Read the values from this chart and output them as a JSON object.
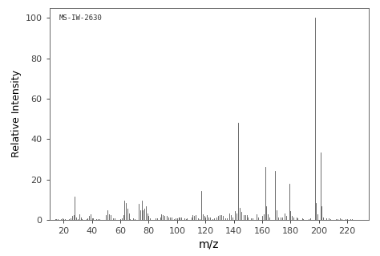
{
  "annotation": "MS-IW-2630",
  "xlabel": "m/z",
  "ylabel": "Relative Intensity",
  "xlim": [
    10,
    235
  ],
  "ylim": [
    0,
    105
  ],
  "xticks": [
    20,
    40,
    60,
    80,
    100,
    120,
    140,
    160,
    180,
    200,
    220
  ],
  "yticks": [
    0,
    20,
    40,
    60,
    80,
    100
  ],
  "background_color": "#ffffff",
  "line_color": "#555555",
  "peaks": [
    [
      14,
      0.5
    ],
    [
      15,
      0.5
    ],
    [
      16,
      0.5
    ],
    [
      18,
      0.5
    ],
    [
      19,
      1.0
    ],
    [
      20,
      0.5
    ],
    [
      21,
      0.5
    ],
    [
      24,
      0.5
    ],
    [
      25,
      1.0
    ],
    [
      26,
      2.0
    ],
    [
      27,
      2.5
    ],
    [
      28,
      11.5
    ],
    [
      29,
      1.5
    ],
    [
      30,
      0.5
    ],
    [
      31,
      3.0
    ],
    [
      32,
      1.5
    ],
    [
      33,
      0.5
    ],
    [
      36,
      0.5
    ],
    [
      37,
      1.0
    ],
    [
      38,
      2.0
    ],
    [
      39,
      3.0
    ],
    [
      40,
      1.0
    ],
    [
      41,
      1.0
    ],
    [
      43,
      0.5
    ],
    [
      44,
      0.5
    ],
    [
      45,
      0.5
    ],
    [
      50,
      2.5
    ],
    [
      51,
      5.0
    ],
    [
      52,
      3.0
    ],
    [
      53,
      2.5
    ],
    [
      55,
      1.0
    ],
    [
      56,
      1.0
    ],
    [
      60,
      0.5
    ],
    [
      61,
      1.0
    ],
    [
      62,
      2.5
    ],
    [
      63,
      9.5
    ],
    [
      64,
      8.5
    ],
    [
      65,
      5.5
    ],
    [
      66,
      3.5
    ],
    [
      67,
      0.5
    ],
    [
      69,
      1.0
    ],
    [
      70,
      0.5
    ],
    [
      73,
      8.0
    ],
    [
      74,
      5.0
    ],
    [
      75,
      9.5
    ],
    [
      76,
      5.0
    ],
    [
      77,
      5.5
    ],
    [
      78,
      7.0
    ],
    [
      79,
      3.5
    ],
    [
      80,
      2.0
    ],
    [
      81,
      1.0
    ],
    [
      85,
      1.0
    ],
    [
      86,
      1.0
    ],
    [
      88,
      1.5
    ],
    [
      89,
      3.0
    ],
    [
      90,
      2.5
    ],
    [
      91,
      2.0
    ],
    [
      93,
      2.0
    ],
    [
      94,
      1.5
    ],
    [
      95,
      1.5
    ],
    [
      96,
      1.5
    ],
    [
      98,
      0.5
    ],
    [
      99,
      1.0
    ],
    [
      100,
      1.0
    ],
    [
      101,
      1.5
    ],
    [
      102,
      1.5
    ],
    [
      103,
      1.5
    ],
    [
      105,
      1.0
    ],
    [
      106,
      0.5
    ],
    [
      107,
      1.0
    ],
    [
      110,
      1.5
    ],
    [
      111,
      2.5
    ],
    [
      112,
      2.0
    ],
    [
      113,
      2.5
    ],
    [
      115,
      1.0
    ],
    [
      116,
      0.5
    ],
    [
      117,
      14.5
    ],
    [
      118,
      3.0
    ],
    [
      119,
      2.0
    ],
    [
      120,
      1.5
    ],
    [
      121,
      2.5
    ],
    [
      122,
      1.5
    ],
    [
      123,
      1.5
    ],
    [
      125,
      0.5
    ],
    [
      126,
      1.0
    ],
    [
      128,
      1.5
    ],
    [
      129,
      2.0
    ],
    [
      130,
      2.5
    ],
    [
      131,
      2.5
    ],
    [
      132,
      2.0
    ],
    [
      134,
      1.0
    ],
    [
      135,
      1.0
    ],
    [
      137,
      3.5
    ],
    [
      138,
      2.5
    ],
    [
      139,
      1.5
    ],
    [
      141,
      4.5
    ],
    [
      142,
      3.5
    ],
    [
      143,
      48.0
    ],
    [
      144,
      6.0
    ],
    [
      145,
      4.0
    ],
    [
      147,
      2.5
    ],
    [
      148,
      2.5
    ],
    [
      149,
      2.5
    ],
    [
      150,
      1.5
    ],
    [
      152,
      1.0
    ],
    [
      153,
      1.0
    ],
    [
      156,
      3.0
    ],
    [
      157,
      1.5
    ],
    [
      160,
      2.0
    ],
    [
      161,
      3.0
    ],
    [
      162,
      26.5
    ],
    [
      163,
      7.0
    ],
    [
      164,
      3.0
    ],
    [
      165,
      1.5
    ],
    [
      169,
      24.5
    ],
    [
      170,
      5.0
    ],
    [
      171,
      1.5
    ],
    [
      173,
      1.5
    ],
    [
      174,
      1.5
    ],
    [
      176,
      3.5
    ],
    [
      177,
      2.0
    ],
    [
      179,
      18.0
    ],
    [
      180,
      4.5
    ],
    [
      181,
      2.0
    ],
    [
      182,
      1.5
    ],
    [
      184,
      1.5
    ],
    [
      185,
      1.0
    ],
    [
      188,
      1.0
    ],
    [
      189,
      0.5
    ],
    [
      193,
      0.5
    ],
    [
      194,
      1.0
    ],
    [
      197,
      100.0
    ],
    [
      198,
      8.5
    ],
    [
      199,
      3.0
    ],
    [
      201,
      33.5
    ],
    [
      202,
      7.0
    ],
    [
      203,
      1.5
    ],
    [
      205,
      1.0
    ],
    [
      207,
      1.0
    ],
    [
      208,
      0.5
    ],
    [
      212,
      0.5
    ],
    [
      213,
      0.5
    ],
    [
      215,
      1.0
    ],
    [
      216,
      0.5
    ],
    [
      219,
      0.5
    ],
    [
      220,
      0.5
    ],
    [
      222,
      0.5
    ],
    [
      223,
      0.5
    ]
  ]
}
